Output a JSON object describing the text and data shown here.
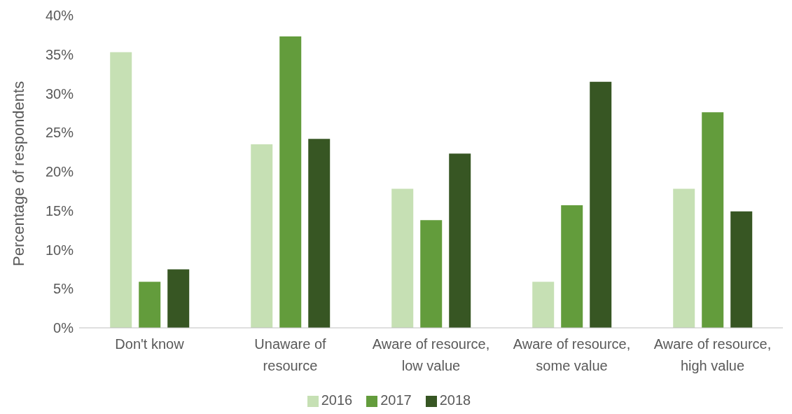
{
  "chart_data": {
    "type": "bar",
    "ylabel": "Percentage of respondents",
    "categories": [
      "Don't know",
      "Unaware of resource",
      "Aware of resource, low value",
      "Aware of resource, some value",
      "Aware of resource, high value"
    ],
    "series": [
      {
        "name": "2016",
        "color": "#c6e0b4",
        "values": [
          35.3,
          23.5,
          17.8,
          5.9,
          17.8
        ]
      },
      {
        "name": "2017",
        "color": "#639c3c",
        "values": [
          5.9,
          37.3,
          13.8,
          15.7,
          27.6
        ]
      },
      {
        "name": "2018",
        "color": "#375623",
        "values": [
          7.5,
          24.2,
          22.3,
          31.5,
          14.9
        ]
      }
    ],
    "ylim": [
      0,
      40
    ],
    "yticks": [
      {
        "value": 0,
        "label": "0%"
      },
      {
        "value": 5,
        "label": "5%"
      },
      {
        "value": 10,
        "label": "10%"
      },
      {
        "value": 15,
        "label": "15%"
      },
      {
        "value": 20,
        "label": "20%"
      },
      {
        "value": 25,
        "label": "25%"
      },
      {
        "value": 30,
        "label": "30%"
      },
      {
        "value": 35,
        "label": "35%"
      },
      {
        "value": 40,
        "label": "40%"
      }
    ],
    "grid": false,
    "legend": "bottom"
  }
}
